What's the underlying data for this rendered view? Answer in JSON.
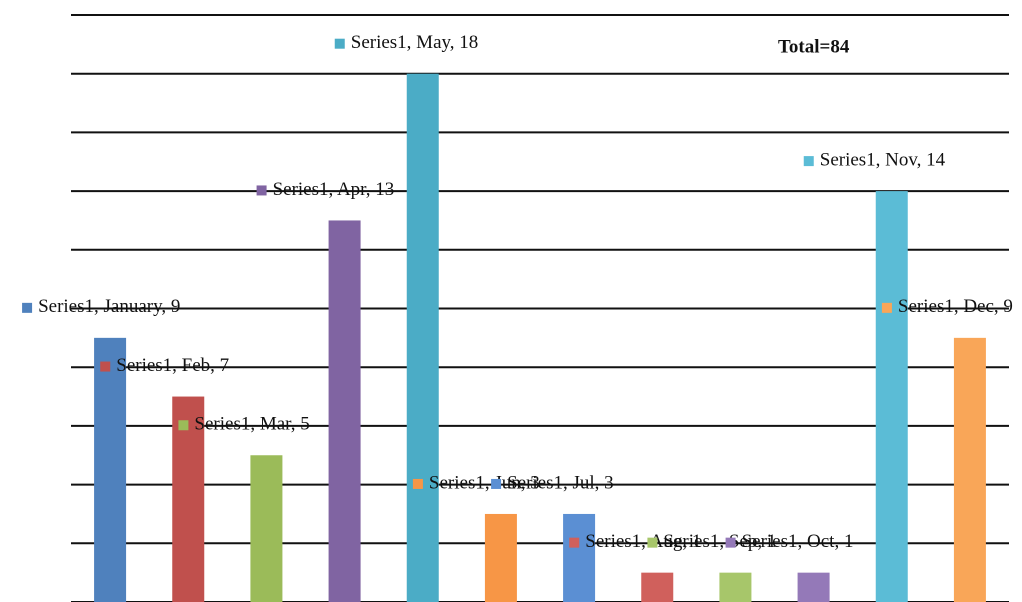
{
  "chart_data": {
    "type": "bar",
    "annotation": "Total=84",
    "values": [
      9,
      7,
      5,
      13,
      18,
      3,
      3,
      1,
      1,
      1,
      14,
      9
    ],
    "value_labels": [
      "Series1, January, 9",
      "Series1, Feb, 7",
      "Series1, Mar, 5",
      "Series1, Apr, 13",
      "Series1, May, 18",
      "Series1, Jun, 3",
      "Series1, Jul, 3",
      "Series1, Aug, 1",
      "Series1, Sep, 1",
      "Series1, Oct, 1",
      "Series1, Nov, 14",
      "Series1, Dec, 9"
    ],
    "colors": [
      "#4f81bd",
      "#c0504d",
      "#9bbb59",
      "#8064a2",
      "#4bacc6",
      "#f79646",
      "#5b8fd3",
      "#d0605c",
      "#a7c66a",
      "#9479b8",
      "#5bbcd6",
      "#f9a658"
    ],
    "ylim": [
      0,
      20
    ],
    "yticks": [
      0,
      2,
      4,
      6,
      8,
      10,
      12,
      14,
      16,
      18,
      20
    ],
    "grid": true
  }
}
